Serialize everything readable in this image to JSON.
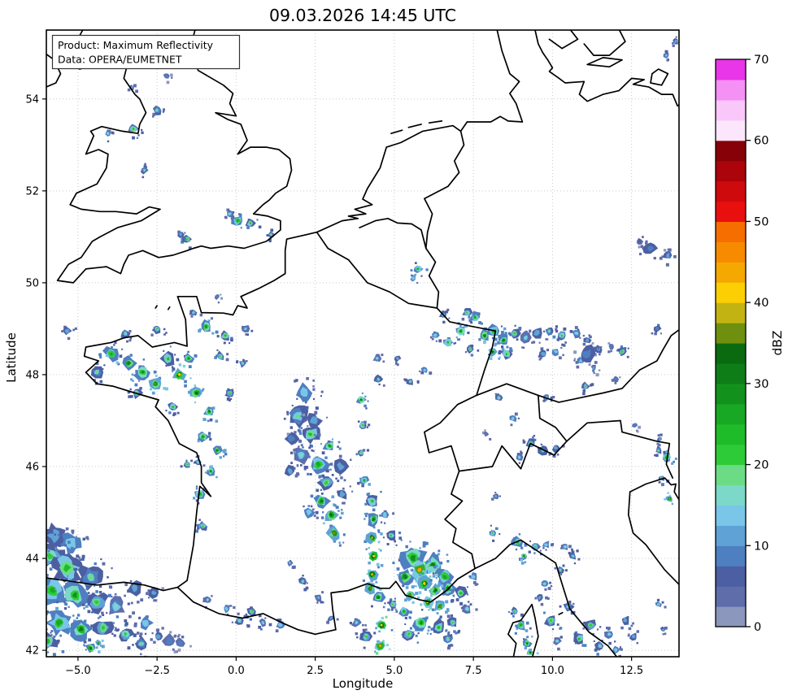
{
  "title": "09.03.2026 14:45 UTC",
  "annotation": {
    "line1": "Product: Maximum Reflectivity",
    "line2": "Data: OPERA/EUMETNET"
  },
  "axes": {
    "xlabel": "Longitude",
    "ylabel": "Latitude",
    "x_ticks": [
      -5.0,
      -2.5,
      0.0,
      2.5,
      5.0,
      7.5,
      10.0,
      12.5
    ],
    "x_tick_labels": [
      "−5.0",
      "−2.5",
      "0.0",
      "2.5",
      "5.0",
      "7.5",
      "10.0",
      "12.5"
    ],
    "y_ticks": [
      54,
      52,
      50,
      48,
      46,
      44,
      42
    ],
    "y_tick_labels": [
      "54",
      "52",
      "50",
      "48",
      "46",
      "44",
      "42"
    ],
    "xlim": [
      -6.0,
      14.0
    ],
    "ylim": [
      41.86,
      55.5
    ]
  },
  "colorbar": {
    "label": "dBZ",
    "ticks": [
      0,
      10,
      20,
      30,
      40,
      50,
      60,
      70
    ],
    "vmin": 0,
    "vmax": 70,
    "segment_step": 2.5,
    "colors": [
      "#8c97bd",
      "#5f6dab",
      "#4c5fa2",
      "#4e7fc0",
      "#5fa2d6",
      "#79c6e8",
      "#7cd8c8",
      "#6bdc85",
      "#2ecb38",
      "#1fbc2a",
      "#18a824",
      "#12921d",
      "#0e7d17",
      "#0a6a10",
      "#6f8f0e",
      "#c3b312",
      "#fbcf04",
      "#f5a800",
      "#f68b00",
      "#f66e00",
      "#ea0f0f",
      "#cf0a0d",
      "#ab040a",
      "#870108",
      "#fbe6fb",
      "#f9c7f9",
      "#f590f5",
      "#e836e8"
    ]
  },
  "chart_data": {
    "type": "heatmap",
    "title": "09.03.2026 14:45 UTC",
    "product": "Maximum Reflectivity",
    "data_source": "OPERA/EUMETNET",
    "xlabel": "Longitude",
    "ylabel": "Latitude",
    "xlim": [
      -6.0,
      14.0
    ],
    "ylim": [
      41.86,
      55.5
    ],
    "units": "dBZ",
    "colorbar_ticks": [
      0,
      10,
      20,
      30,
      40,
      50,
      60,
      70
    ],
    "cells_format": "[lon_deg, lat_deg, max_dbz, radius_px]",
    "cells": [
      [
        -5.75,
        44.5,
        10,
        16
      ],
      [
        -5.2,
        44.35,
        14,
        14
      ],
      [
        -5.9,
        44.05,
        20,
        18
      ],
      [
        -5.35,
        43.8,
        24,
        20
      ],
      [
        -4.6,
        43.6,
        18,
        16
      ],
      [
        -5.8,
        43.3,
        26,
        18
      ],
      [
        -5.1,
        43.2,
        28,
        16
      ],
      [
        -4.4,
        43.05,
        22,
        14
      ],
      [
        -5.6,
        42.6,
        25,
        16
      ],
      [
        -4.9,
        42.45,
        30,
        13
      ],
      [
        -4.2,
        42.5,
        22,
        12
      ],
      [
        -3.8,
        42.95,
        16,
        12
      ],
      [
        -3.5,
        42.35,
        20,
        10
      ],
      [
        -5.95,
        42.2,
        24,
        12
      ],
      [
        -3.2,
        43.35,
        12,
        10
      ],
      [
        -2.85,
        42.6,
        14,
        9
      ],
      [
        -3.0,
        42.15,
        18,
        9
      ],
      [
        -4.6,
        42.05,
        33,
        7
      ],
      [
        -4.35,
        42.15,
        36,
        4
      ],
      [
        -2.6,
        43.25,
        10,
        7
      ],
      [
        -2.45,
        42.3,
        12,
        7
      ],
      [
        -2.1,
        42.2,
        8,
        9
      ],
      [
        -1.75,
        42.15,
        8,
        7
      ],
      [
        0.1,
        42.65,
        18,
        6
      ],
      [
        0.5,
        42.85,
        22,
        6
      ],
      [
        0.85,
        42.6,
        16,
        5
      ],
      [
        1.4,
        42.55,
        14,
        5
      ],
      [
        -0.3,
        42.9,
        14,
        5
      ],
      [
        -0.9,
        43.1,
        16,
        5
      ],
      [
        1.7,
        43.9,
        15,
        4
      ],
      [
        2.1,
        43.5,
        18,
        5
      ],
      [
        2.6,
        43.15,
        15,
        5
      ],
      [
        3.0,
        42.7,
        12,
        4
      ],
      [
        -1.15,
        45.4,
        26,
        7
      ],
      [
        -1.05,
        44.7,
        20,
        6
      ],
      [
        -0.8,
        45.9,
        30,
        6
      ],
      [
        -1.2,
        46.1,
        18,
        5
      ],
      [
        -4.4,
        48.05,
        18,
        8
      ],
      [
        -3.95,
        48.45,
        26,
        10
      ],
      [
        -3.4,
        48.25,
        32,
        9
      ],
      [
        -2.95,
        48.05,
        28,
        10
      ],
      [
        -2.55,
        47.8,
        36,
        8
      ],
      [
        -2.15,
        48.35,
        24,
        9
      ],
      [
        -1.8,
        48.0,
        40,
        8
      ],
      [
        -1.5,
        48.35,
        28,
        7
      ],
      [
        -3.15,
        47.6,
        20,
        7
      ],
      [
        -2.0,
        47.3,
        24,
        6
      ],
      [
        -3.5,
        48.9,
        18,
        6
      ],
      [
        -2.5,
        49.0,
        20,
        6
      ],
      [
        -0.95,
        49.05,
        28,
        8
      ],
      [
        -0.35,
        48.85,
        24,
        7
      ],
      [
        -1.35,
        49.35,
        18,
        5
      ],
      [
        -1.25,
        47.6,
        34,
        8
      ],
      [
        -0.85,
        47.2,
        30,
        7
      ],
      [
        -1.05,
        46.65,
        28,
        7
      ],
      [
        -0.6,
        46.35,
        32,
        6
      ],
      [
        -1.55,
        46.05,
        22,
        5
      ],
      [
        -0.2,
        47.6,
        22,
        6
      ],
      [
        0.2,
        48.25,
        18,
        5
      ],
      [
        -0.5,
        48.4,
        20,
        6
      ],
      [
        0.3,
        49.0,
        16,
        5
      ],
      [
        -5.35,
        48.95,
        10,
        6
      ],
      [
        -0.6,
        49.7,
        8,
        4
      ],
      [
        0.05,
        51.35,
        26,
        8
      ],
      [
        0.45,
        51.3,
        24,
        6
      ],
      [
        -0.2,
        51.5,
        16,
        5
      ],
      [
        1.1,
        51.05,
        18,
        5
      ],
      [
        -1.55,
        50.95,
        22,
        6
      ],
      [
        -1.75,
        51.05,
        12,
        4
      ],
      [
        -3.25,
        53.35,
        24,
        6
      ],
      [
        -2.5,
        53.75,
        18,
        6
      ],
      [
        -4.05,
        53.25,
        16,
        5
      ],
      [
        -2.9,
        52.45,
        18,
        5
      ],
      [
        -3.3,
        54.25,
        10,
        4
      ],
      [
        -2.2,
        54.5,
        8,
        4
      ],
      [
        2.15,
        47.6,
        14,
        12
      ],
      [
        1.95,
        47.1,
        18,
        14
      ],
      [
        2.35,
        46.7,
        24,
        13
      ],
      [
        2.05,
        46.25,
        16,
        11
      ],
      [
        2.6,
        46.05,
        26,
        12
      ],
      [
        2.85,
        45.65,
        22,
        11
      ],
      [
        2.7,
        45.25,
        30,
        10
      ],
      [
        3.0,
        44.95,
        34,
        9
      ],
      [
        3.1,
        44.55,
        36,
        9
      ],
      [
        2.45,
        47.0,
        10,
        10
      ],
      [
        1.75,
        46.6,
        9,
        9
      ],
      [
        3.3,
        46.0,
        11,
        9
      ],
      [
        2.95,
        46.45,
        28,
        8
      ],
      [
        3.35,
        45.4,
        12,
        8
      ],
      [
        2.3,
        45.0,
        14,
        7
      ],
      [
        1.7,
        45.9,
        10,
        7
      ],
      [
        4.3,
        45.25,
        24,
        9
      ],
      [
        4.35,
        44.85,
        30,
        9
      ],
      [
        4.3,
        44.45,
        38,
        8
      ],
      [
        4.35,
        44.05,
        42,
        8
      ],
      [
        4.3,
        43.65,
        40,
        8
      ],
      [
        4.25,
        43.35,
        36,
        7
      ],
      [
        4.5,
        43.15,
        30,
        8
      ],
      [
        4.6,
        42.55,
        42,
        7
      ],
      [
        4.55,
        42.1,
        44,
        7
      ],
      [
        4.1,
        42.3,
        20,
        8
      ],
      [
        3.8,
        42.6,
        16,
        6
      ],
      [
        4.9,
        44.5,
        20,
        7
      ],
      [
        4.7,
        44.95,
        14,
        6
      ],
      [
        4.05,
        45.7,
        26,
        6
      ],
      [
        3.95,
        46.3,
        20,
        5
      ],
      [
        4.0,
        46.9,
        24,
        5
      ],
      [
        3.95,
        47.45,
        30,
        6
      ],
      [
        4.5,
        47.9,
        18,
        5
      ],
      [
        5.1,
        48.35,
        12,
        4
      ],
      [
        5.5,
        47.85,
        18,
        5
      ],
      [
        4.45,
        48.35,
        16,
        5
      ],
      [
        5.95,
        48.1,
        14,
        4
      ],
      [
        5.6,
        44.0,
        28,
        16
      ],
      [
        6.2,
        43.85,
        30,
        13
      ],
      [
        6.6,
        43.6,
        26,
        12
      ],
      [
        5.35,
        43.6,
        32,
        11
      ],
      [
        5.8,
        43.75,
        44,
        11
      ],
      [
        5.9,
        43.55,
        52,
        7
      ],
      [
        5.88,
        43.5,
        57,
        3
      ],
      [
        5.95,
        43.45,
        40,
        9
      ],
      [
        6.3,
        43.3,
        34,
        9
      ],
      [
        6.7,
        43.35,
        30,
        9
      ],
      [
        7.1,
        43.25,
        24,
        8
      ],
      [
        5.5,
        43.2,
        36,
        7
      ],
      [
        6.05,
        43.05,
        42,
        7
      ],
      [
        6.45,
        42.95,
        36,
        7
      ],
      [
        5.3,
        42.85,
        26,
        7
      ],
      [
        5.85,
        42.6,
        28,
        10
      ],
      [
        6.4,
        42.5,
        24,
        9
      ],
      [
        6.85,
        42.6,
        20,
        7
      ],
      [
        5.45,
        42.35,
        22,
        8
      ],
      [
        6.7,
        42.25,
        18,
        7
      ],
      [
        7.3,
        42.9,
        16,
        6
      ],
      [
        4.95,
        43.0,
        20,
        6
      ],
      [
        7.5,
        43.6,
        14,
        5
      ],
      [
        8.1,
        44.55,
        20,
        6
      ],
      [
        8.9,
        44.35,
        26,
        7
      ],
      [
        9.45,
        44.25,
        20,
        6
      ],
      [
        9.1,
        44.05,
        32,
        5
      ],
      [
        9.8,
        44.3,
        14,
        5
      ],
      [
        10.4,
        44.25,
        16,
        5
      ],
      [
        10.65,
        44.05,
        18,
        5
      ],
      [
        8.2,
        45.35,
        10,
        4
      ],
      [
        9.3,
        46.5,
        22,
        7
      ],
      [
        9.7,
        46.35,
        18,
        6
      ],
      [
        8.95,
        46.2,
        16,
        5
      ],
      [
        10.1,
        46.4,
        12,
        5
      ],
      [
        8.75,
        47.05,
        14,
        5
      ],
      [
        7.9,
        46.7,
        8,
        4
      ],
      [
        6.7,
        48.7,
        24,
        7
      ],
      [
        7.1,
        48.95,
        28,
        7
      ],
      [
        7.55,
        49.25,
        26,
        7
      ],
      [
        7.3,
        49.35,
        20,
        6
      ],
      [
        7.85,
        48.85,
        32,
        7
      ],
      [
        8.15,
        48.95,
        26,
        8
      ],
      [
        8.45,
        48.75,
        30,
        8
      ],
      [
        8.8,
        48.9,
        22,
        7
      ],
      [
        8.1,
        48.5,
        34,
        6
      ],
      [
        8.55,
        48.45,
        24,
        7
      ],
      [
        9.15,
        48.8,
        16,
        7
      ],
      [
        9.5,
        48.9,
        12,
        8
      ],
      [
        9.9,
        48.95,
        18,
        6
      ],
      [
        10.3,
        48.85,
        20,
        7
      ],
      [
        10.75,
        48.9,
        16,
        6
      ],
      [
        11.1,
        48.75,
        12,
        5
      ],
      [
        10.1,
        48.5,
        14,
        5
      ],
      [
        9.7,
        48.45,
        10,
        6
      ],
      [
        6.55,
        49.3,
        18,
        5
      ],
      [
        6.3,
        48.85,
        14,
        5
      ],
      [
        11.45,
        48.55,
        10,
        5
      ],
      [
        11.85,
        48.6,
        8,
        4
      ],
      [
        12.2,
        48.5,
        22,
        6
      ],
      [
        7.4,
        48.55,
        22,
        5
      ],
      [
        10.9,
        48.3,
        14,
        5
      ],
      [
        11.3,
        48.15,
        10,
        4
      ],
      [
        11.1,
        48.45,
        9,
        12
      ],
      [
        9.8,
        47.5,
        16,
        5
      ],
      [
        11.05,
        47.75,
        20,
        5
      ],
      [
        12.0,
        47.9,
        8,
        4
      ],
      [
        8.3,
        47.5,
        18,
        5
      ],
      [
        5.75,
        50.3,
        26,
        6
      ],
      [
        5.6,
        50.1,
        14,
        4
      ],
      [
        13.1,
        50.75,
        9,
        9
      ],
      [
        13.65,
        50.6,
        11,
        6
      ],
      [
        12.75,
        50.9,
        7,
        5
      ],
      [
        13.3,
        49.0,
        9,
        5
      ],
      [
        13.6,
        54.95,
        16,
        4
      ],
      [
        13.9,
        55.25,
        12,
        4
      ],
      [
        13.6,
        46.2,
        26,
        7
      ],
      [
        13.35,
        46.35,
        18,
        5
      ],
      [
        13.4,
        46.6,
        10,
        4
      ],
      [
        12.6,
        46.9,
        8,
        4
      ],
      [
        13.7,
        45.3,
        38,
        5
      ],
      [
        13.45,
        45.75,
        20,
        4
      ],
      [
        13.35,
        43.0,
        14,
        4
      ],
      [
        13.5,
        42.45,
        10,
        4
      ],
      [
        9.0,
        42.55,
        26,
        7
      ],
      [
        9.2,
        42.15,
        30,
        6
      ],
      [
        8.8,
        42.85,
        20,
        5
      ],
      [
        9.3,
        41.95,
        34,
        5
      ],
      [
        9.95,
        42.65,
        22,
        8
      ],
      [
        10.5,
        42.95,
        18,
        7
      ],
      [
        11.2,
        42.55,
        22,
        8
      ],
      [
        11.8,
        42.35,
        16,
        6
      ],
      [
        10.85,
        42.25,
        24,
        7
      ],
      [
        12.3,
        42.65,
        12,
        6
      ],
      [
        9.75,
        43.45,
        16,
        6
      ],
      [
        10.25,
        43.75,
        18,
        5
      ],
      [
        11.5,
        42.1,
        18,
        6
      ],
      [
        12.0,
        42.0,
        14,
        5
      ],
      [
        12.55,
        42.3,
        10,
        5
      ],
      [
        10.15,
        42.2,
        16,
        5
      ],
      [
        9.6,
        43.15,
        12,
        5
      ]
    ]
  }
}
